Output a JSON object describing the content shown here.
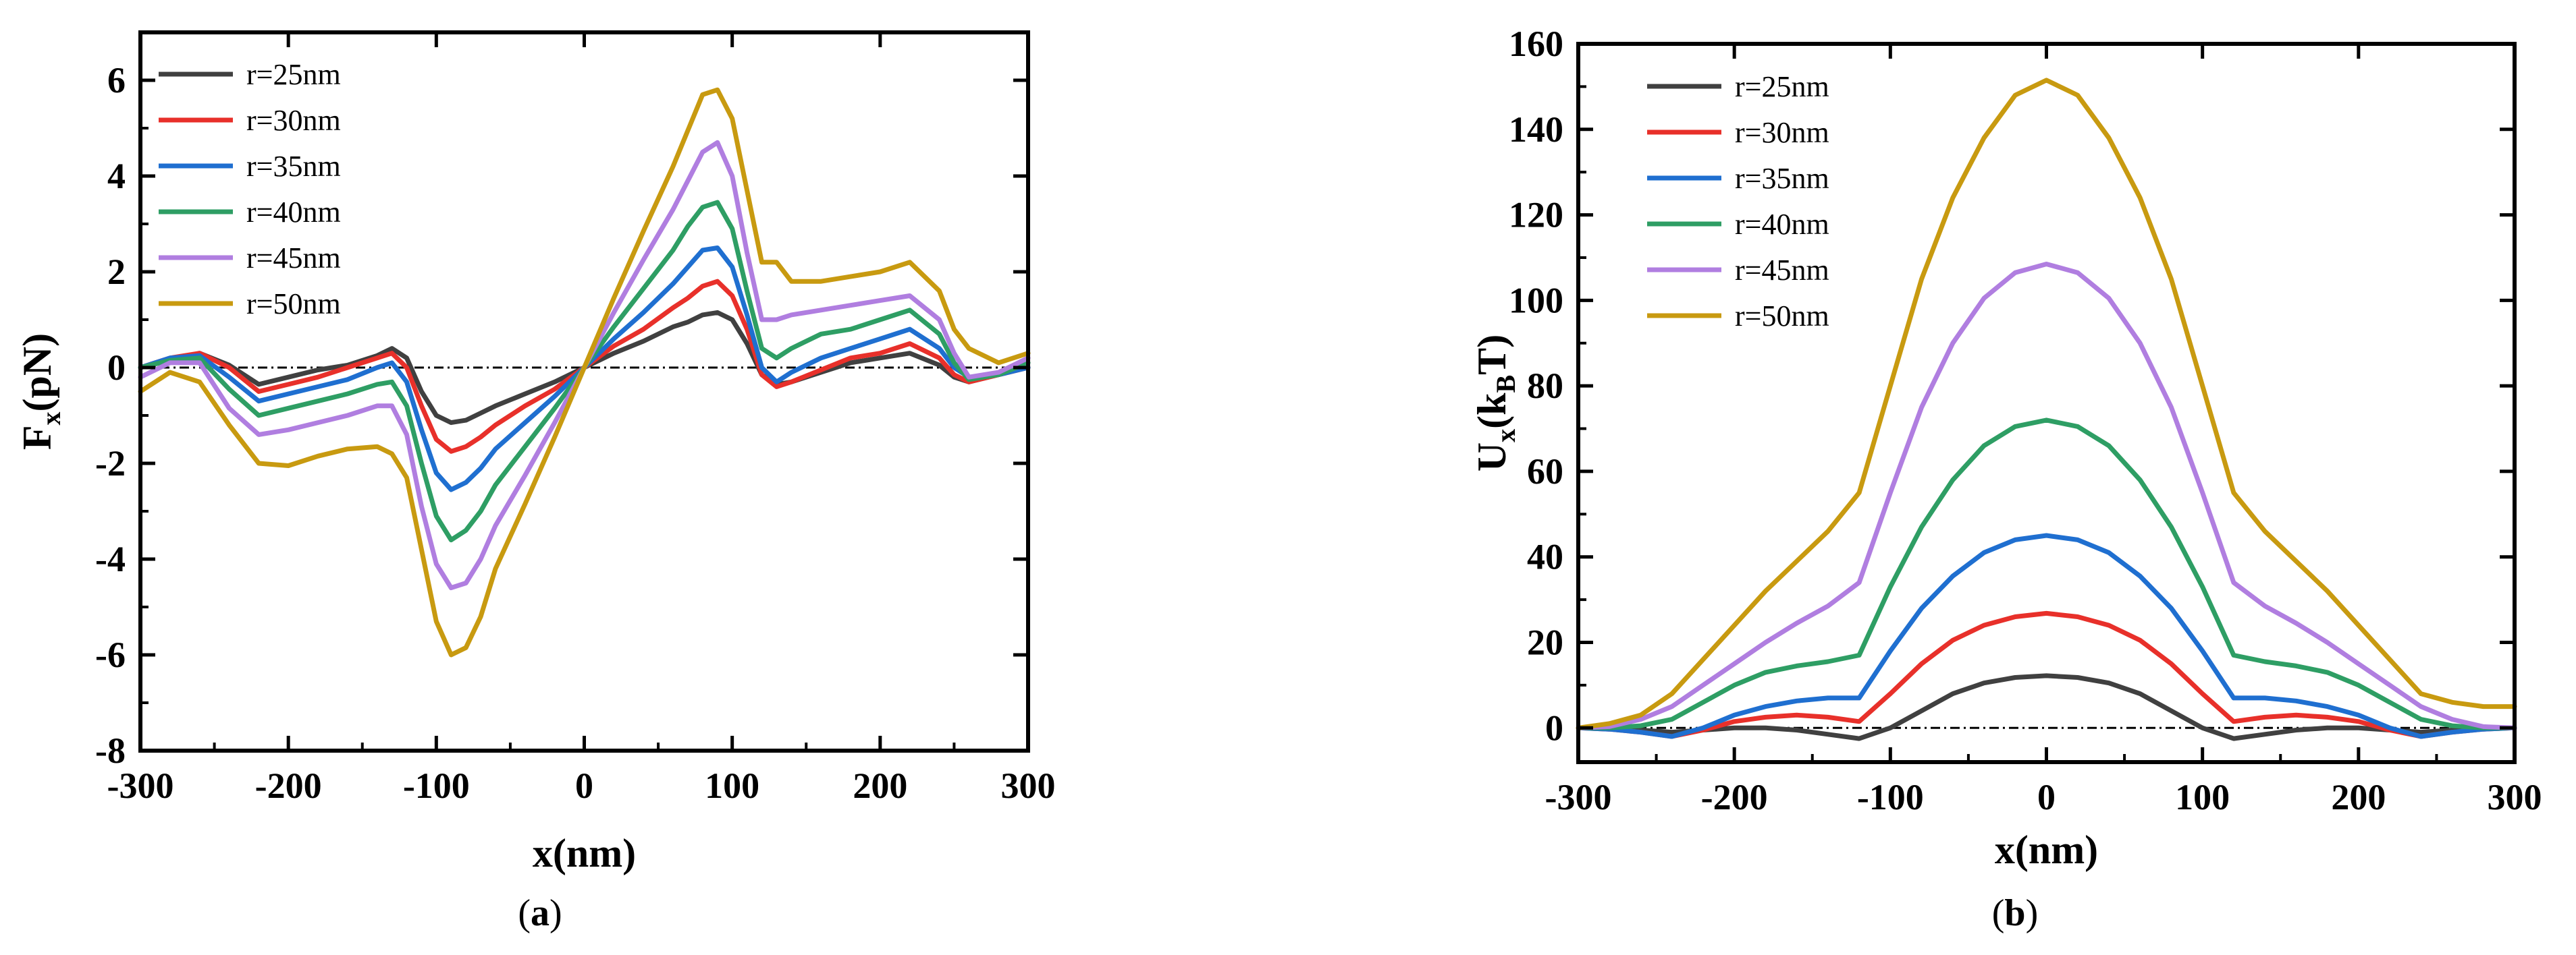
{
  "chart_data": [
    {
      "type": "line",
      "caption_letter": "a",
      "xlabel": "x(nm)",
      "ylabel_main": "F",
      "ylabel_sub": "x",
      "ylabel_rest": "(pN)",
      "xlim": [
        -300,
        300
      ],
      "ylim": [
        -8,
        7
      ],
      "xticks": [
        -300,
        -200,
        -100,
        0,
        100,
        200,
        300
      ],
      "yticks": [
        -8,
        -6,
        -4,
        -2,
        0,
        2,
        4,
        6
      ],
      "zero_line": true,
      "legend_position": "top-left",
      "x": [
        -300,
        -280,
        -260,
        -240,
        -220,
        -200,
        -180,
        -160,
        -140,
        -130,
        -120,
        -110,
        -100,
        -90,
        -80,
        -70,
        -60,
        -40,
        -20,
        0,
        20,
        40,
        60,
        70,
        80,
        90,
        100,
        110,
        120,
        130,
        140,
        160,
        180,
        200,
        220,
        240,
        250,
        260,
        280,
        300
      ],
      "series": [
        {
          "name": "r=25nm",
          "color": "#404040",
          "values": [
            0.0,
            0.15,
            0.3,
            0.05,
            -0.35,
            -0.2,
            -0.05,
            0.05,
            0.25,
            0.4,
            0.2,
            -0.5,
            -1.0,
            -1.15,
            -1.1,
            -0.95,
            -0.8,
            -0.55,
            -0.3,
            0.0,
            0.3,
            0.55,
            0.85,
            0.95,
            1.1,
            1.15,
            1.0,
            0.5,
            -0.15,
            -0.35,
            -0.3,
            -0.1,
            0.1,
            0.2,
            0.3,
            0.05,
            -0.2,
            -0.3,
            -0.15,
            0.0
          ]
        },
        {
          "name": "r=30nm",
          "color": "#e8302a",
          "values": [
            0.0,
            0.2,
            0.3,
            0.0,
            -0.5,
            -0.35,
            -0.2,
            0.0,
            0.2,
            0.3,
            0.0,
            -0.8,
            -1.5,
            -1.75,
            -1.65,
            -1.45,
            -1.2,
            -0.8,
            -0.45,
            0.0,
            0.45,
            0.8,
            1.25,
            1.45,
            1.7,
            1.8,
            1.5,
            0.8,
            -0.15,
            -0.4,
            -0.3,
            -0.05,
            0.2,
            0.3,
            0.5,
            0.2,
            -0.15,
            -0.3,
            -0.15,
            0.0
          ]
        },
        {
          "name": "r=35nm",
          "color": "#1f6fd0",
          "values": [
            0.0,
            0.2,
            0.25,
            -0.2,
            -0.7,
            -0.55,
            -0.4,
            -0.25,
            0.0,
            0.1,
            -0.3,
            -1.3,
            -2.2,
            -2.55,
            -2.4,
            -2.1,
            -1.7,
            -1.15,
            -0.6,
            0.0,
            0.6,
            1.15,
            1.75,
            2.1,
            2.45,
            2.5,
            2.1,
            1.1,
            0.0,
            -0.3,
            -0.1,
            0.2,
            0.4,
            0.6,
            0.8,
            0.4,
            0.0,
            -0.2,
            -0.15,
            0.0
          ]
        },
        {
          "name": "r=40nm",
          "color": "#2e9e64",
          "values": [
            0.0,
            0.15,
            0.2,
            -0.45,
            -1.0,
            -0.85,
            -0.7,
            -0.55,
            -0.35,
            -0.3,
            -0.8,
            -2.0,
            -3.1,
            -3.6,
            -3.4,
            -3.0,
            -2.45,
            -1.65,
            -0.85,
            0.0,
            0.85,
            1.65,
            2.45,
            2.95,
            3.35,
            3.45,
            2.9,
            1.6,
            0.4,
            0.2,
            0.4,
            0.7,
            0.8,
            1.0,
            1.2,
            0.7,
            0.1,
            -0.25,
            -0.15,
            0.1
          ]
        },
        {
          "name": "r=45nm",
          "color": "#b07ee0",
          "values": [
            -0.2,
            0.1,
            0.1,
            -0.85,
            -1.4,
            -1.3,
            -1.15,
            -1.0,
            -0.8,
            -0.8,
            -1.4,
            -2.9,
            -4.1,
            -4.6,
            -4.5,
            -4.0,
            -3.3,
            -2.25,
            -1.15,
            0.0,
            1.15,
            2.25,
            3.3,
            3.9,
            4.5,
            4.7,
            4.0,
            2.4,
            1.0,
            1.0,
            1.1,
            1.2,
            1.3,
            1.4,
            1.5,
            1.0,
            0.3,
            -0.2,
            -0.1,
            0.2
          ]
        },
        {
          "name": "r=50nm",
          "color": "#c89a10",
          "values": [
            -0.5,
            -0.1,
            -0.3,
            -1.2,
            -2.0,
            -2.05,
            -1.85,
            -1.7,
            -1.65,
            -1.8,
            -2.3,
            -3.8,
            -5.3,
            -6.0,
            -5.85,
            -5.2,
            -4.2,
            -2.85,
            -1.45,
            0.0,
            1.45,
            2.85,
            4.2,
            4.95,
            5.7,
            5.8,
            5.2,
            3.7,
            2.2,
            2.2,
            1.8,
            1.8,
            1.9,
            2.0,
            2.2,
            1.6,
            0.8,
            0.4,
            0.1,
            0.3
          ]
        }
      ]
    },
    {
      "type": "line",
      "caption_letter": "b",
      "xlabel": "x(nm)",
      "ylabel_main": "U",
      "ylabel_sub": "x",
      "ylabel_mid": "(k",
      "ylabel_sub2": "B",
      "ylabel_rest": "T)",
      "xlim": [
        -300,
        300
      ],
      "ylim": [
        -8,
        160
      ],
      "xticks": [
        -300,
        -200,
        -100,
        0,
        100,
        200,
        300
      ],
      "yticks": [
        0,
        20,
        40,
        60,
        80,
        100,
        120,
        140,
        160
      ],
      "zero_line": true,
      "legend_position": "top-left",
      "x": [
        -300,
        -280,
        -260,
        -240,
        -220,
        -200,
        -180,
        -160,
        -140,
        -120,
        -100,
        -80,
        -60,
        -40,
        -20,
        0,
        20,
        40,
        60,
        80,
        100,
        120,
        140,
        160,
        180,
        200,
        220,
        240,
        260,
        280,
        300
      ],
      "series": [
        {
          "name": "r=25nm",
          "color": "#404040",
          "values": [
            0,
            0,
            -0.5,
            -1,
            -0.5,
            0,
            0,
            -0.5,
            -1.5,
            -2.5,
            0,
            4,
            8,
            10.5,
            11.8,
            12.2,
            11.8,
            10.5,
            8,
            4,
            0,
            -2.5,
            -1.5,
            -0.5,
            0,
            0,
            -0.5,
            -1,
            -0.5,
            0,
            0
          ]
        },
        {
          "name": "r=30nm",
          "color": "#e8302a",
          "values": [
            0,
            -0.3,
            -1,
            -2,
            -0.5,
            1.5,
            2.5,
            3,
            2.5,
            1.5,
            8,
            15,
            20.5,
            24,
            26,
            26.8,
            26,
            24,
            20.5,
            15,
            8,
            1.5,
            2.5,
            3,
            2.5,
            1.5,
            -0.5,
            -2,
            -1,
            -0.3,
            0
          ]
        },
        {
          "name": "r=35nm",
          "color": "#1f6fd0",
          "values": [
            0,
            -0.3,
            -1,
            -2,
            0,
            3,
            5,
            6.3,
            7,
            7,
            18,
            28,
            35.5,
            41,
            44,
            45,
            44,
            41,
            35.5,
            28,
            18,
            7,
            7,
            6.3,
            5,
            3,
            0,
            -2,
            -1,
            -0.3,
            0
          ]
        },
        {
          "name": "r=40nm",
          "color": "#2e9e64",
          "values": [
            0,
            0,
            0.5,
            2,
            6,
            10,
            13,
            14.5,
            15.5,
            17,
            33,
            47,
            58,
            66,
            70.5,
            72,
            70.5,
            66,
            58,
            47,
            33,
            17,
            15.5,
            14.5,
            13,
            10,
            6,
            2,
            0.5,
            0,
            0
          ]
        },
        {
          "name": "r=45nm",
          "color": "#b07ee0",
          "values": [
            0,
            0.3,
            2,
            5,
            10,
            15,
            20,
            24.5,
            28.5,
            34,
            55,
            75,
            90,
            100.5,
            106.5,
            108.5,
            106.5,
            100.5,
            90,
            75,
            55,
            34,
            28.5,
            24.5,
            20,
            15,
            10,
            5,
            2,
            0.3,
            0
          ]
        },
        {
          "name": "r=50nm",
          "color": "#c89a10",
          "values": [
            0,
            1,
            3,
            8,
            16,
            24,
            32,
            39,
            46,
            55,
            80,
            105,
            124,
            138,
            148,
            151.5,
            148,
            138,
            124,
            105,
            80,
            55,
            46,
            39,
            32,
            24,
            16,
            8,
            6,
            5,
            5
          ]
        }
      ]
    }
  ]
}
